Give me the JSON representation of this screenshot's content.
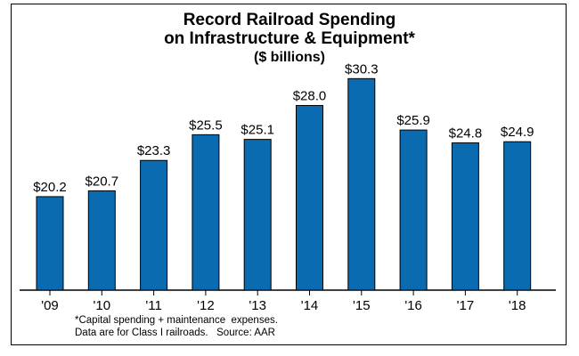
{
  "chart_data": {
    "type": "bar",
    "title": "Record Railroad Spending",
    "title_line2": "on Infrastructure & Equipment*",
    "subtitle": "($ billions)",
    "categories": [
      "'09",
      "'10",
      "'11",
      "'12",
      "'13",
      "'14",
      "'15",
      "'16",
      "'17",
      "'18"
    ],
    "values": [
      20.2,
      20.7,
      23.3,
      25.5,
      25.1,
      28.0,
      30.3,
      25.9,
      24.8,
      24.9
    ],
    "value_labels": [
      "$20.2",
      "$20.7",
      "$23.3",
      "$25.5",
      "$25.1",
      "$28.0",
      "$30.3",
      "$25.9",
      "$24.8",
      "$24.9"
    ],
    "xlabel": "",
    "ylabel": "",
    "ylim": [
      12.2,
      32
    ],
    "grid": false,
    "legend": "none",
    "bar_color": "#0b6bb0",
    "footnotes": [
      "*Capital spending + maintenance  expenses.",
      "Data are for Class I railroads.   Source: AAR"
    ]
  }
}
